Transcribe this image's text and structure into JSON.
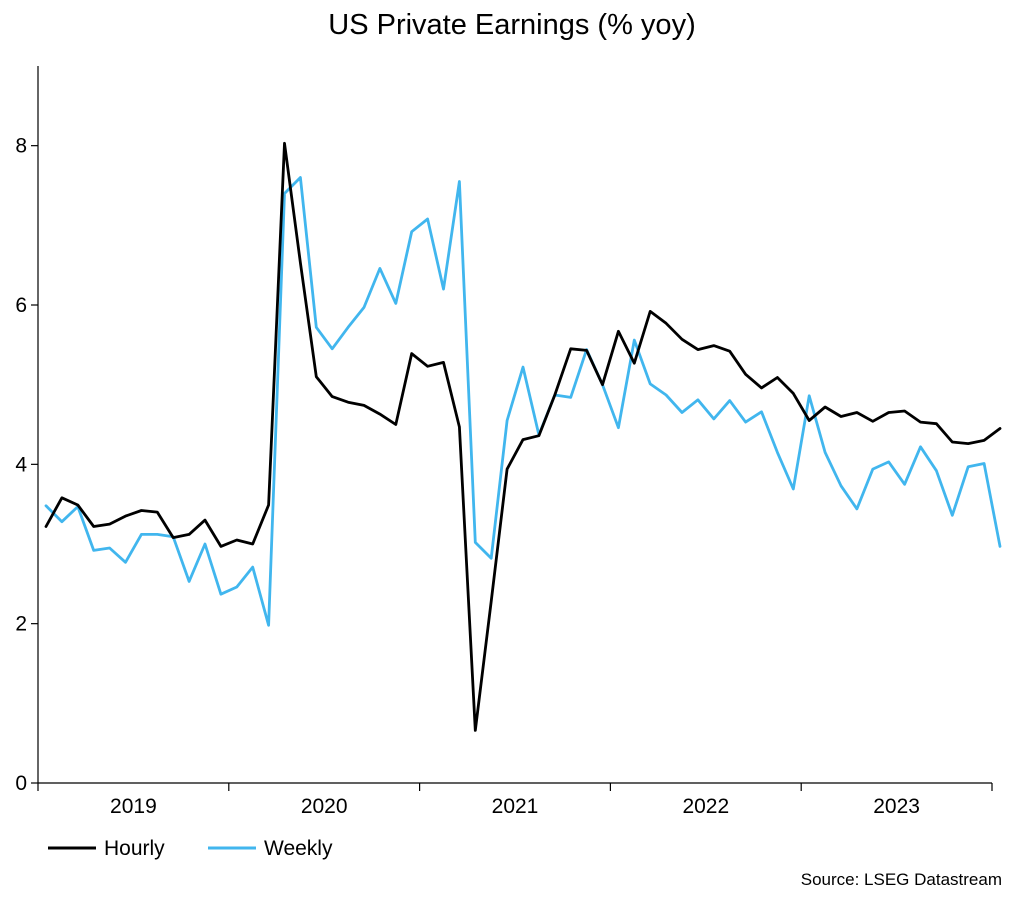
{
  "chart_data": {
    "type": "line",
    "title": "US Private Earnings (% yoy)",
    "xlabel": "",
    "ylabel": "",
    "ylim": [
      0,
      9
    ],
    "yticks": [
      0,
      2,
      4,
      6,
      8
    ],
    "xlim": [
      2019.0,
      2024.0
    ],
    "year_labels": [
      "2019",
      "2020",
      "2021",
      "2022",
      "2023"
    ],
    "source": "Source: LSEG Datastream",
    "colors": {
      "hourly": "#000000",
      "weekly": "#41b6ee"
    },
    "series": [
      {
        "name": "Hourly",
        "key": "hourly",
        "start": 2019.042,
        "step": 0.08333,
        "values": [
          3.22,
          3.58,
          3.49,
          3.22,
          3.25,
          3.35,
          3.42,
          3.4,
          3.08,
          3.12,
          3.3,
          2.97,
          3.05,
          3.0,
          3.49,
          8.03,
          6.53,
          5.1,
          4.85,
          4.78,
          4.74,
          4.63,
          4.5,
          5.39,
          5.23,
          5.28,
          4.47,
          0.66,
          2.28,
          3.94,
          4.31,
          4.36,
          4.87,
          5.45,
          5.43,
          5.0,
          5.67,
          5.27,
          5.92,
          5.77,
          5.57,
          5.44,
          5.49,
          5.42,
          5.13,
          4.96,
          5.09,
          4.89,
          4.55,
          4.72,
          4.6,
          4.65,
          4.54,
          4.65,
          4.67,
          4.53,
          4.51,
          4.28,
          4.26,
          4.3,
          4.45
        ]
      },
      {
        "name": "Weekly",
        "key": "weekly",
        "start": 2019.042,
        "step": 0.08333,
        "values": [
          3.48,
          3.28,
          3.47,
          2.92,
          2.95,
          2.77,
          3.12,
          3.12,
          3.09,
          2.53,
          3.0,
          2.37,
          2.46,
          2.71,
          1.98,
          7.4,
          7.6,
          5.72,
          5.45,
          5.72,
          5.97,
          6.46,
          6.02,
          6.92,
          7.08,
          6.2,
          7.55,
          3.02,
          2.82,
          4.55,
          5.22,
          4.37,
          4.87,
          4.84,
          5.44,
          5.0,
          4.46,
          5.56,
          5.01,
          4.87,
          4.65,
          4.81,
          4.57,
          4.8,
          4.53,
          4.66,
          4.15,
          3.69,
          4.86,
          4.15,
          3.73,
          3.44,
          3.94,
          4.03,
          3.75,
          4.22,
          3.92,
          3.36,
          3.97,
          4.01,
          2.97
        ]
      }
    ]
  }
}
